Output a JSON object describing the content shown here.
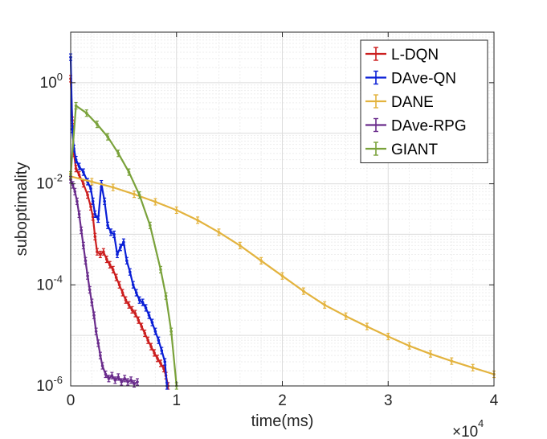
{
  "chart_data": {
    "type": "line",
    "title": "",
    "xlabel": "time(ms)",
    "ylabel": "suboptimality",
    "x_scale_label": {
      "base": "×10",
      "exponent": "4"
    },
    "xlim": [
      0,
      40000
    ],
    "ylim": [
      1e-06,
      10
    ],
    "yscale": "log",
    "grid": true,
    "legend_position": "top-right",
    "x_ticks": [
      {
        "value": 0,
        "label": "0"
      },
      {
        "value": 10000,
        "label": "1"
      },
      {
        "value": 20000,
        "label": "2"
      },
      {
        "value": 30000,
        "label": "3"
      },
      {
        "value": 40000,
        "label": "4"
      }
    ],
    "y_ticks": [
      {
        "value": 1e-06,
        "base": "10",
        "exp": "-6"
      },
      {
        "value": 0.0001,
        "base": "10",
        "exp": "-4"
      },
      {
        "value": 0.01,
        "base": "10",
        "exp": "-2"
      },
      {
        "value": 1,
        "base": "10",
        "exp": "0"
      }
    ],
    "series": [
      {
        "name": "L-DQN",
        "color": "#cc1f1f",
        "x": [
          0,
          150,
          300,
          500,
          800,
          1200,
          1600,
          1900,
          2100,
          2300,
          2500,
          2800,
          3100,
          3400,
          3700,
          4000,
          4300,
          4600,
          4900,
          5200,
          5500,
          5800,
          6100,
          6400,
          6700,
          7000,
          7300,
          7600,
          7900,
          8200,
          8500,
          8800,
          9000,
          9200
        ],
        "y": [
          1.2,
          0.18,
          0.04,
          0.02,
          0.015,
          0.01,
          0.006,
          0.0035,
          0.0022,
          0.0009,
          0.00045,
          0.0004,
          0.00045,
          0.00032,
          0.00025,
          0.0002,
          0.00014,
          0.0001,
          7e-05,
          5e-05,
          4e-05,
          3.2e-05,
          2.7e-05,
          2e-05,
          1.5e-05,
          1.1e-05,
          8e-06,
          6e-06,
          4.5e-06,
          3.5e-06,
          2.8e-06,
          2.2e-06,
          1.6e-06,
          1e-06
        ]
      },
      {
        "name": "DAve-QN",
        "color": "#0a1fd6",
        "x": [
          0,
          150,
          300,
          500,
          800,
          1200,
          1600,
          1900,
          2100,
          2300,
          2600,
          2900,
          3200,
          3500,
          3800,
          4100,
          4400,
          4700,
          5000,
          5300,
          5600,
          5900,
          6200,
          6500,
          6800,
          7100,
          7400,
          7700,
          8000,
          8300,
          8600,
          8900,
          9100
        ],
        "y": [
          3.2,
          0.12,
          0.05,
          0.03,
          0.022,
          0.017,
          0.011,
          0.008,
          0.0045,
          0.0025,
          0.002,
          0.01,
          0.0045,
          0.0015,
          0.0011,
          0.001,
          0.0004,
          0.00055,
          0.0007,
          0.0003,
          0.00018,
          0.0001,
          7e-05,
          5e-05,
          4.5e-05,
          3.5e-05,
          2.5e-05,
          1.8e-05,
          1.2e-05,
          8e-06,
          5e-06,
          3e-06,
          1e-06
        ]
      },
      {
        "name": "DANE",
        "color": "#e3b33e",
        "x": [
          0,
          2000,
          4000,
          6000,
          8000,
          10000,
          12000,
          14000,
          16000,
          18000,
          20000,
          22000,
          24000,
          26000,
          28000,
          30000,
          32000,
          34000,
          36000,
          38000,
          40000
        ],
        "y": [
          0.014,
          0.011,
          0.0085,
          0.0062,
          0.0044,
          0.003,
          0.0019,
          0.0011,
          0.0006,
          0.0003,
          0.00015,
          7.5e-05,
          4e-05,
          2.4e-05,
          1.5e-05,
          9.5e-06,
          6.2e-06,
          4.3e-06,
          3.1e-06,
          2.3e-06,
          1.7e-06
        ]
      },
      {
        "name": "DAve-RPG",
        "color": "#6a2c8c",
        "x": [
          0,
          200,
          400,
          600,
          800,
          1000,
          1200,
          1400,
          1600,
          1800,
          2000,
          2200,
          2400,
          2600,
          2800,
          3000,
          3300,
          3600,
          3900,
          4200,
          4500,
          4800,
          5100,
          5400,
          5700,
          6000,
          6300
        ],
        "y": [
          0.012,
          0.0095,
          0.007,
          0.0045,
          0.0025,
          0.0012,
          0.0006,
          0.0003,
          0.00015,
          8e-05,
          4.5e-05,
          2.5e-05,
          1.2e-05,
          7e-06,
          4e-06,
          2.5e-06,
          1.7e-06,
          1.4e-06,
          1.6e-06,
          1.3e-06,
          1.5e-06,
          1.2e-06,
          1.4e-06,
          1.2e-06,
          1.3e-06,
          1.1e-06,
          1.2e-06
        ]
      },
      {
        "name": "GIANT",
        "color": "#7aa23b",
        "x": [
          0,
          500,
          1500,
          2500,
          3500,
          4500,
          5500,
          6500,
          7500,
          8500,
          9000,
          9500,
          10000
        ],
        "y": [
          0.015,
          0.35,
          0.25,
          0.15,
          0.085,
          0.04,
          0.017,
          0.006,
          0.0015,
          0.0002,
          6e-05,
          1.2e-05,
          1e-06
        ]
      }
    ]
  }
}
